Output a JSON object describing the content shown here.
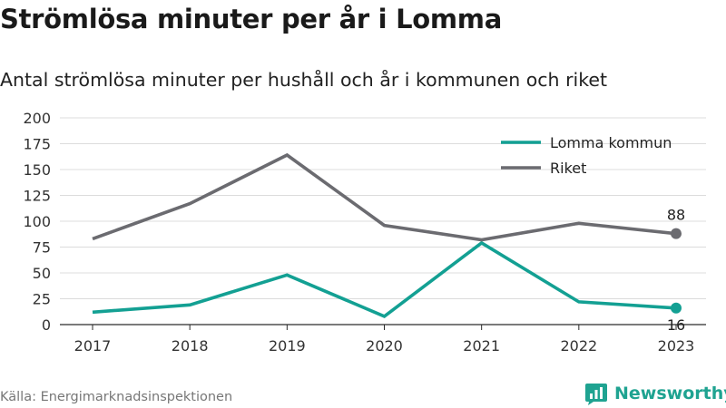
{
  "title": "Strömlösa minuter per år i Lomma",
  "subtitle": "Antal strömlösa minuter per hushåll och år i kommunen och riket",
  "source": "Källa: Energimarknadsinspektionen",
  "brand": {
    "name": "Newsworthy",
    "color": "#1fa391"
  },
  "chart_data": {
    "type": "line",
    "x": [
      "2017",
      "2018",
      "2019",
      "2020",
      "2021",
      "2022",
      "2023"
    ],
    "ylim": [
      0,
      200
    ],
    "yticks": [
      0,
      25,
      50,
      75,
      100,
      125,
      150,
      175,
      200
    ],
    "grid": true,
    "legend_position": "top-right",
    "series": [
      {
        "name": "Lomma kommun",
        "color": "#13a093",
        "values": [
          12,
          19,
          48,
          8,
          79,
          22,
          16
        ],
        "end_label": "16"
      },
      {
        "name": "Riket",
        "color": "#6b6b70",
        "values": [
          83,
          117,
          164,
          96,
          82,
          98,
          88
        ],
        "end_label": "88"
      }
    ]
  }
}
